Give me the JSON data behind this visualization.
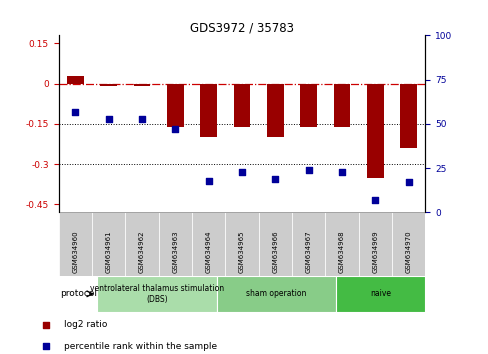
{
  "title": "GDS3972 / 35783",
  "samples": [
    "GSM634960",
    "GSM634961",
    "GSM634962",
    "GSM634963",
    "GSM634964",
    "GSM634965",
    "GSM634966",
    "GSM634967",
    "GSM634968",
    "GSM634969",
    "GSM634970"
  ],
  "log2_ratio": [
    0.03,
    -0.01,
    -0.01,
    -0.16,
    -0.2,
    -0.16,
    -0.2,
    -0.16,
    -0.16,
    -0.35,
    -0.24
  ],
  "percentile_rank": [
    57,
    53,
    53,
    47,
    18,
    23,
    19,
    24,
    23,
    7,
    17
  ],
  "groups": [
    {
      "label": "ventrolateral thalamus stimulation\n(DBS)",
      "start": 0,
      "end": 3,
      "color": "#aaddaa"
    },
    {
      "label": "sham operation",
      "start": 4,
      "end": 7,
      "color": "#88cc88"
    },
    {
      "label": "naive",
      "start": 8,
      "end": 10,
      "color": "#44bb44"
    }
  ],
  "ylim_left": [
    -0.48,
    0.18
  ],
  "ylim_right": [
    0,
    100
  ],
  "yticks_left": [
    0.15,
    0.0,
    -0.15,
    -0.3,
    -0.45
  ],
  "yticks_right": [
    100,
    75,
    50,
    25,
    0
  ],
  "hlines": [
    -0.15,
    -0.3
  ],
  "bar_color": "#990000",
  "scatter_color": "#000099",
  "dash_color": "#cc0000",
  "protocol_label": "protocol",
  "sample_box_color": "#cccccc",
  "legend_items": [
    {
      "color": "#990000",
      "label": "log2 ratio"
    },
    {
      "color": "#000099",
      "label": "percentile rank within the sample"
    }
  ]
}
